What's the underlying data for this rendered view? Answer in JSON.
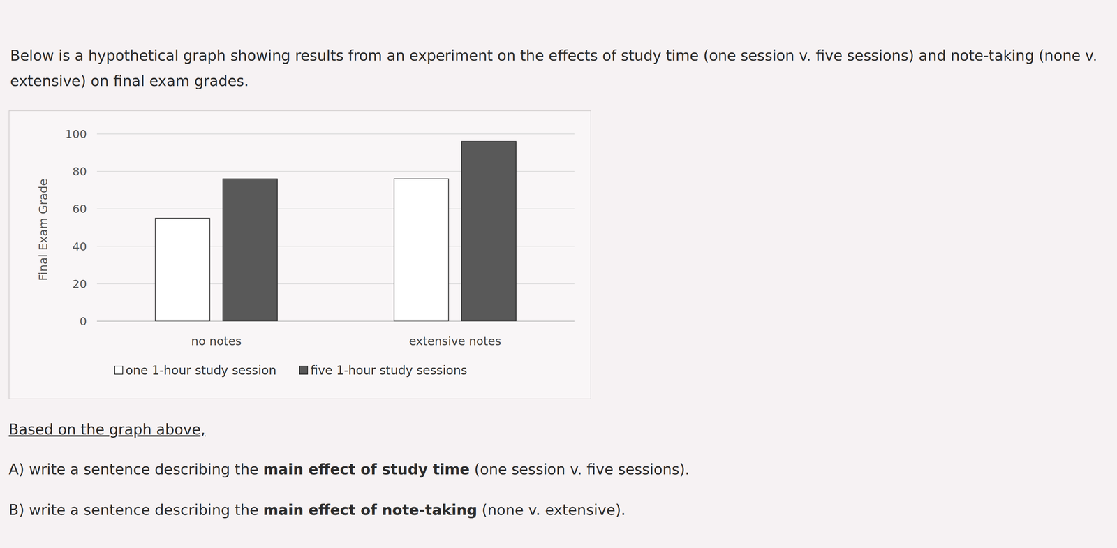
{
  "header": {
    "intro": "Below is a hypothetical graph showing results from an experiment on the effects of study time (one session v. five sessions) and note-taking (none v. extensive) on final exam grades."
  },
  "chart_data": {
    "type": "bar",
    "y_label": "Final Exam Grade",
    "categories": [
      "no notes",
      "extensive notes"
    ],
    "series": [
      {
        "name": "one 1-hour study session",
        "color": "#ffffff",
        "values": [
          55,
          76
        ]
      },
      {
        "name": "five 1-hour study sessions",
        "color": "#595959",
        "values": [
          76,
          96
        ]
      }
    ],
    "ylim": [
      0,
      100
    ],
    "yticks": [
      0,
      20,
      40,
      60,
      80,
      100
    ],
    "grid": true,
    "legend": "bottom"
  },
  "questions": {
    "prompt": "Based on the graph above,",
    "items": [
      {
        "lead": "A) write a sentence describing the ",
        "bold": "main effect of study time",
        "tail": " (one session v. five sessions)."
      },
      {
        "lead": "B) write a sentence describing the ",
        "bold": "main effect of note-taking",
        "tail": " (none v. extensive)."
      }
    ]
  }
}
